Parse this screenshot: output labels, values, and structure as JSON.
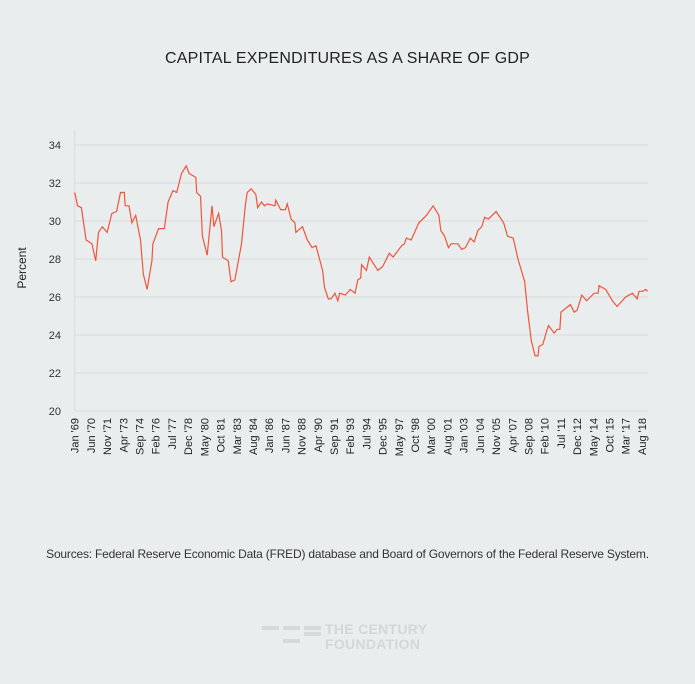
{
  "chart_data": {
    "type": "line",
    "title": "CAPITAL EXPENDITURES AS A SHARE OF GDP",
    "ylabel": "Percent",
    "xlabel": "",
    "ylim": [
      20,
      34
    ],
    "y_ticks": [
      20,
      22,
      24,
      26,
      28,
      30,
      32,
      34
    ],
    "x_range": [
      "1969-01",
      "2019-02"
    ],
    "grid": "horizontal",
    "line_color": "#f0553a",
    "x_ticks": [
      {
        "date": "1969-01",
        "label": "Jan '69"
      },
      {
        "date": "1970-06",
        "label": "Jun '70"
      },
      {
        "date": "1971-11",
        "label": "Nov '71"
      },
      {
        "date": "1973-04",
        "label": "Apr '73"
      },
      {
        "date": "1974-09",
        "label": "Sep '74"
      },
      {
        "date": "1976-02",
        "label": "Feb '76"
      },
      {
        "date": "1977-07",
        "label": "Jul '77"
      },
      {
        "date": "1978-12",
        "label": "Dec '78"
      },
      {
        "date": "1980-05",
        "label": "May '80"
      },
      {
        "date": "1981-10",
        "label": "Oct '81"
      },
      {
        "date": "1983-03",
        "label": "Mar '83"
      },
      {
        "date": "1984-08",
        "label": "Aug '84"
      },
      {
        "date": "1986-01",
        "label": "Jan '86"
      },
      {
        "date": "1987-06",
        "label": "Jun '87"
      },
      {
        "date": "1988-11",
        "label": "Nov '88"
      },
      {
        "date": "1990-04",
        "label": "Apr '90"
      },
      {
        "date": "1991-09",
        "label": "Sep '91"
      },
      {
        "date": "1993-02",
        "label": "Feb '93"
      },
      {
        "date": "1994-07",
        "label": "Jul '94"
      },
      {
        "date": "1995-12",
        "label": "Dec '95"
      },
      {
        "date": "1997-05",
        "label": "May '97"
      },
      {
        "date": "1998-10",
        "label": "Oct '98"
      },
      {
        "date": "2000-03",
        "label": "Mar '00"
      },
      {
        "date": "2001-08",
        "label": "Aug '01"
      },
      {
        "date": "2003-01",
        "label": "Jan '03"
      },
      {
        "date": "2004-06",
        "label": "Jun '04"
      },
      {
        "date": "2005-11",
        "label": "Nov '05"
      },
      {
        "date": "2007-04",
        "label": "Apr '07"
      },
      {
        "date": "2008-09",
        "label": "Sep '08"
      },
      {
        "date": "2010-02",
        "label": "Feb '10"
      },
      {
        "date": "2011-07",
        "label": "Jul '11"
      },
      {
        "date": "2012-12",
        "label": "Dec '12"
      },
      {
        "date": "2014-05",
        "label": "May '14"
      },
      {
        "date": "2015-10",
        "label": "Oct '15"
      },
      {
        "date": "2017-03",
        "label": "Mar '17"
      },
      {
        "date": "2018-08",
        "label": "Aug '18"
      }
    ],
    "series": [
      {
        "points": [
          [
            "1969-01",
            31.5
          ],
          [
            "1969-04",
            30.8
          ],
          [
            "1969-08",
            30.7
          ],
          [
            "1970-01",
            29.0
          ],
          [
            "1970-07",
            28.8
          ],
          [
            "1970-11",
            27.9
          ],
          [
            "1971-02",
            29.4
          ],
          [
            "1971-06",
            29.7
          ],
          [
            "1971-11",
            29.4
          ],
          [
            "1972-04",
            30.4
          ],
          [
            "1972-09",
            30.5
          ],
          [
            "1973-01",
            31.5
          ],
          [
            "1973-05",
            31.5
          ],
          [
            "1973-06",
            30.8
          ],
          [
            "1973-10",
            30.8
          ],
          [
            "1974-01",
            29.9
          ],
          [
            "1974-05",
            30.3
          ],
          [
            "1974-10",
            29.0
          ],
          [
            "1975-01",
            27.2
          ],
          [
            "1975-05",
            26.4
          ],
          [
            "1975-10",
            27.9
          ],
          [
            "1975-11",
            28.8
          ],
          [
            "1976-05",
            29.6
          ],
          [
            "1976-11",
            29.6
          ],
          [
            "1977-03",
            31.0
          ],
          [
            "1977-08",
            31.6
          ],
          [
            "1977-12",
            31.5
          ],
          [
            "1978-05",
            32.5
          ],
          [
            "1978-10",
            32.9
          ],
          [
            "1979-01",
            32.5
          ],
          [
            "1979-08",
            32.3
          ],
          [
            "1979-09",
            31.5
          ],
          [
            "1980-01",
            31.3
          ],
          [
            "1980-03",
            29.2
          ],
          [
            "1980-08",
            28.2
          ],
          [
            "1981-01",
            30.8
          ],
          [
            "1981-03",
            29.7
          ],
          [
            "1981-08",
            30.4
          ],
          [
            "1981-11",
            29.5
          ],
          [
            "1981-12",
            28.1
          ],
          [
            "1982-06",
            27.9
          ],
          [
            "1982-09",
            26.8
          ],
          [
            "1983-01",
            26.9
          ],
          [
            "1983-08",
            28.8
          ],
          [
            "1983-12",
            30.8
          ],
          [
            "1984-02",
            31.5
          ],
          [
            "1984-06",
            31.7
          ],
          [
            "1984-11",
            31.4
          ],
          [
            "1985-01",
            30.7
          ],
          [
            "1985-05",
            31.0
          ],
          [
            "1985-08",
            30.8
          ],
          [
            "1985-11",
            30.9
          ],
          [
            "1986-07",
            30.8
          ],
          [
            "1986-08",
            31.1
          ],
          [
            "1987-01",
            30.6
          ],
          [
            "1987-06",
            30.6
          ],
          [
            "1987-08",
            30.9
          ],
          [
            "1987-12",
            30.1
          ],
          [
            "1988-04",
            29.9
          ],
          [
            "1988-05",
            29.4
          ],
          [
            "1988-12",
            29.7
          ],
          [
            "1989-05",
            29.0
          ],
          [
            "1989-10",
            28.6
          ],
          [
            "1990-02",
            28.7
          ],
          [
            "1990-09",
            27.4
          ],
          [
            "1990-11",
            26.5
          ],
          [
            "1991-03",
            25.9
          ],
          [
            "1991-06",
            25.9
          ],
          [
            "1991-10",
            26.2
          ],
          [
            "1992-01",
            25.8
          ],
          [
            "1992-03",
            26.2
          ],
          [
            "1992-09",
            26.1
          ],
          [
            "1993-02",
            26.4
          ],
          [
            "1993-07",
            26.2
          ],
          [
            "1993-10",
            26.9
          ],
          [
            "1994-01",
            27.0
          ],
          [
            "1994-02",
            27.7
          ],
          [
            "1994-07",
            27.4
          ],
          [
            "1994-10",
            28.1
          ],
          [
            "1995-07",
            27.4
          ],
          [
            "1995-12",
            27.6
          ],
          [
            "1996-07",
            28.3
          ],
          [
            "1996-11",
            28.1
          ],
          [
            "1997-08",
            28.7
          ],
          [
            "1997-11",
            28.8
          ],
          [
            "1998-01",
            29.1
          ],
          [
            "1998-06",
            29.0
          ],
          [
            "1999-02",
            29.9
          ],
          [
            "1999-10",
            30.3
          ],
          [
            "2000-05",
            30.8
          ],
          [
            "2000-11",
            30.3
          ],
          [
            "2001-01",
            29.5
          ],
          [
            "2001-05",
            29.2
          ],
          [
            "2001-09",
            28.6
          ],
          [
            "2001-12",
            28.8
          ],
          [
            "2002-07",
            28.8
          ],
          [
            "2002-11",
            28.5
          ],
          [
            "2003-03",
            28.6
          ],
          [
            "2003-08",
            29.1
          ],
          [
            "2003-12",
            28.9
          ],
          [
            "2004-04",
            29.5
          ],
          [
            "2004-08",
            29.7
          ],
          [
            "2004-11",
            30.2
          ],
          [
            "2005-03",
            30.1
          ],
          [
            "2005-11",
            30.5
          ],
          [
            "2006-07",
            29.9
          ],
          [
            "2006-11",
            29.2
          ],
          [
            "2007-05",
            29.1
          ],
          [
            "2007-10",
            28.0
          ],
          [
            "2008-05",
            26.8
          ],
          [
            "2008-08",
            25.3
          ],
          [
            "2008-12",
            23.7
          ],
          [
            "2009-04",
            22.9
          ],
          [
            "2009-07",
            22.9
          ],
          [
            "2009-08",
            23.4
          ],
          [
            "2009-12",
            23.5
          ],
          [
            "2010-04",
            24.2
          ],
          [
            "2010-06",
            24.5
          ],
          [
            "2010-12",
            24.1
          ],
          [
            "2011-03",
            24.3
          ],
          [
            "2011-06",
            24.3
          ],
          [
            "2011-07",
            25.2
          ],
          [
            "2012-05",
            25.6
          ],
          [
            "2012-09",
            25.2
          ],
          [
            "2012-12",
            25.3
          ],
          [
            "2013-05",
            26.1
          ],
          [
            "2013-10",
            25.8
          ],
          [
            "2014-06",
            26.2
          ],
          [
            "2014-10",
            26.2
          ],
          [
            "2014-11",
            26.6
          ],
          [
            "2015-06",
            26.4
          ],
          [
            "2016-01",
            25.8
          ],
          [
            "2016-06",
            25.5
          ],
          [
            "2017-03",
            26.0
          ],
          [
            "2017-10",
            26.2
          ],
          [
            "2018-03",
            25.9
          ],
          [
            "2018-05",
            26.3
          ],
          [
            "2018-09",
            26.3
          ],
          [
            "2018-12",
            26.4
          ],
          [
            "2019-02",
            26.3
          ]
        ]
      }
    ]
  },
  "footer": {
    "sources": "Sources: Federal Reserve Economic Data (FRED) database and Board of Governors of the Federal Reserve System.",
    "logo_text_1": "THE CENTURY",
    "logo_text_2": "FOUNDATION"
  }
}
